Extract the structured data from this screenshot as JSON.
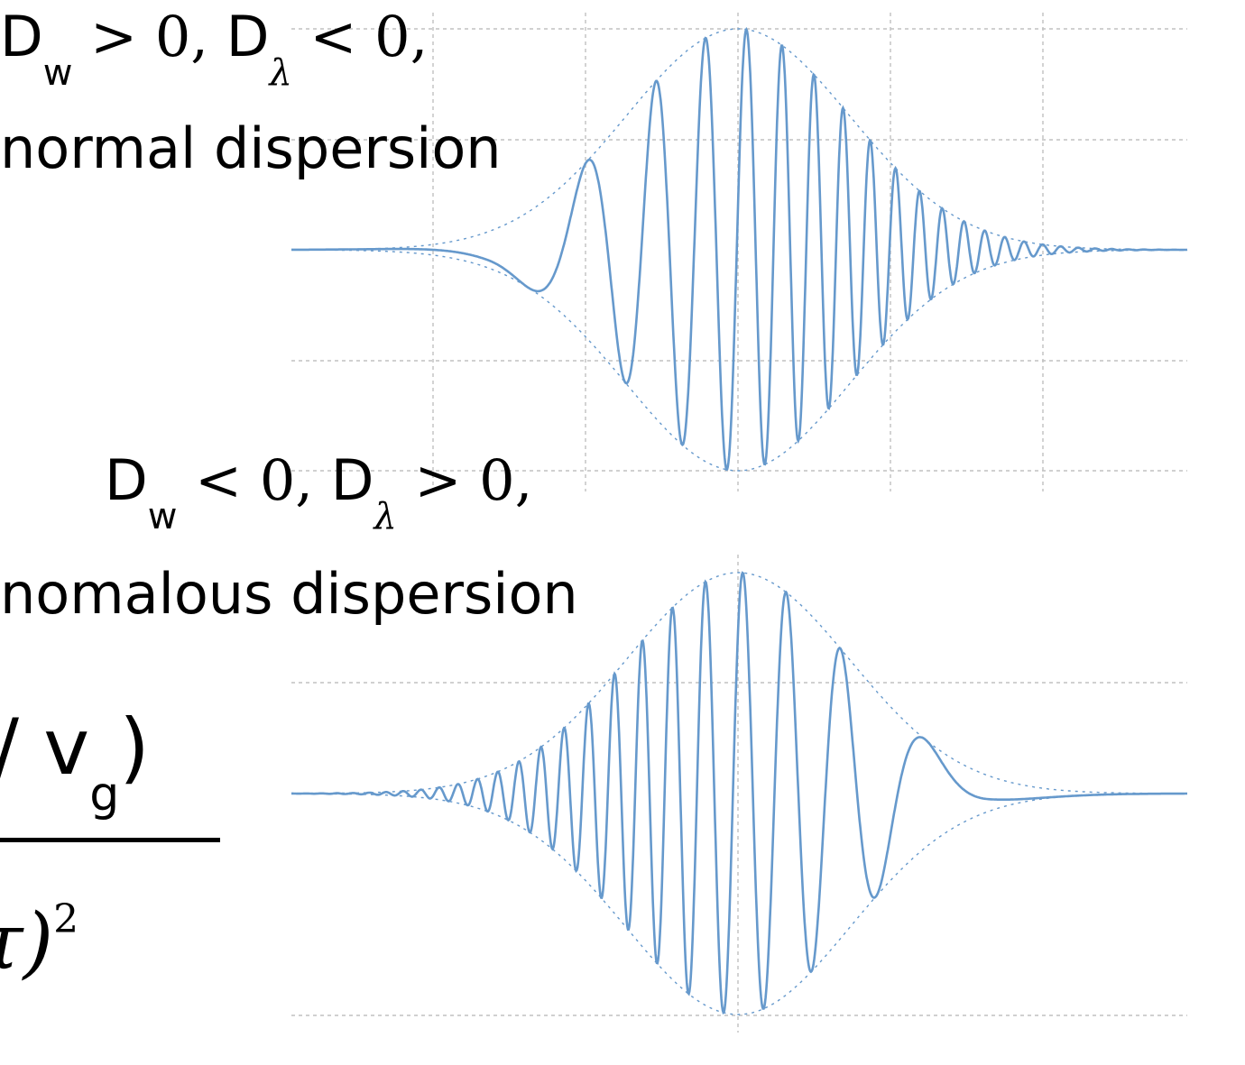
{
  "diagram": {
    "top_condition": {
      "d1": "D",
      "d1_sub": "w",
      "op1": " > 0, ",
      "d2": "D",
      "d2_sub": "λ",
      "op2": " < 0,"
    },
    "top_caption": "normal dispersion",
    "bottom_condition": {
      "d1": "D",
      "d1_sub": "w",
      "op1": " < 0, ",
      "d2": "D",
      "d2_sub": "λ",
      "op2": " > 0,"
    },
    "bottom_caption": "nomalous dispersion",
    "formula": {
      "numerator_text": "/ v",
      "numerator_sub": "g",
      "numerator_close": ")",
      "denominator_text": "τ)",
      "denominator_sup": "2"
    },
    "colors": {
      "waveform": "#6699cc",
      "grid": "#c0c0c0",
      "text": "#000000"
    }
  }
}
